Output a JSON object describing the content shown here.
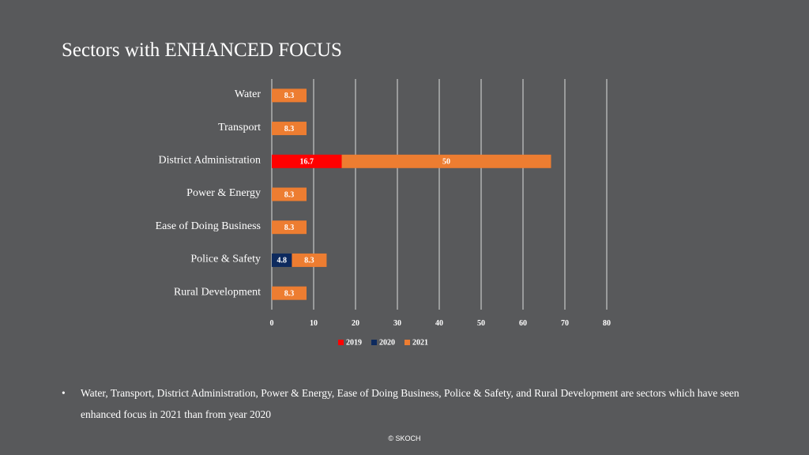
{
  "slide": {
    "title": "Sectors with ENHANCED FOCUS",
    "bullet_symbol": "•",
    "bullet": "Water, Transport, District Administration, Power & Energy, Ease of Doing Business, Police & Safety, and Rural Development are sectors which have seen enhanced focus in 2021 than from year 2020",
    "footer": "© SKOCH"
  },
  "chart_data": {
    "type": "bar",
    "orientation": "horizontal",
    "stacked": true,
    "title": "",
    "xlabel": "",
    "ylabel": "",
    "categories": [
      "Water",
      "Transport",
      "District Administration",
      "Power & Energy",
      "Ease of Doing Business",
      "Police & Safety",
      "Rural Development"
    ],
    "series": [
      {
        "name": "2019",
        "color": "#ff0000",
        "values": [
          0,
          0,
          16.7,
          0,
          0,
          0,
          0
        ]
      },
      {
        "name": "2020",
        "color": "#0d2a5e",
        "values": [
          0,
          0,
          0,
          0,
          0,
          4.8,
          0
        ]
      },
      {
        "name": "2021",
        "color": "#ed7d31",
        "values": [
          8.3,
          8.3,
          50,
          8.3,
          8.3,
          8.3,
          8.3
        ]
      }
    ],
    "xlim": [
      0,
      80
    ],
    "xticks": [
      0,
      10,
      20,
      30,
      40,
      50,
      60,
      70,
      80
    ],
    "grid": "vertical",
    "legend": "bottom"
  }
}
